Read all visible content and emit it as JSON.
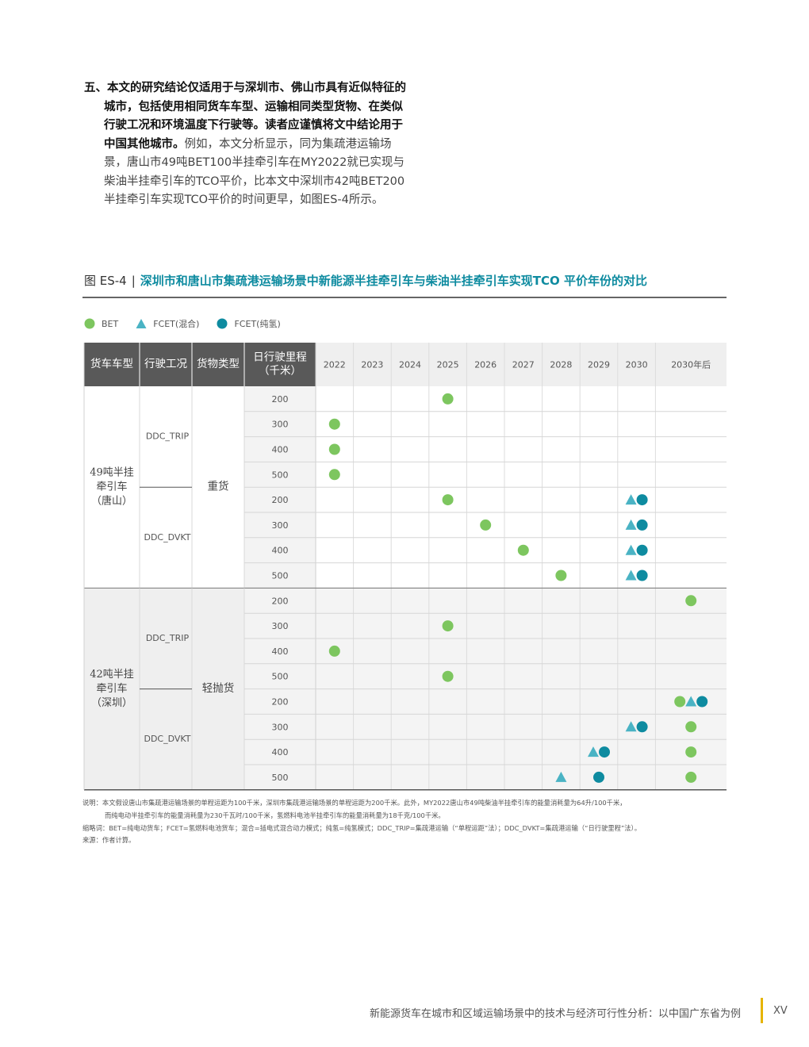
{
  "paragraph": {
    "number": "五、",
    "bold": "本文的研究结论仅适用于与深圳市、佛山市具有近似特征的城市，包括使用相同货车车型、运输相同类型货物、在类似行驶工况和环境温度下行驶等。读者应谨慎将文中结论用于中国其他城市。",
    "rest": "例如，本文分析显示，同为集疏港运输场景，唐山市49吨BET100半挂牵引车在MY2022就已实现与柴油半挂牵引车的TCO平价，比本文中深圳市42吨BET200半挂牵引车实现TCO平价的时间更早，如图ES-4所示。"
  },
  "figure": {
    "label": "图 ES-4",
    "separator": "|",
    "title": "深圳市和唐山市集疏港运输场景中新能源半挂牵引车与柴油半挂牵引车实现TCO 平价年份的对比"
  },
  "legend": [
    {
      "label": "BET",
      "shape": "circle",
      "color": "#7dc65f"
    },
    {
      "label": "FCET(混合)",
      "shape": "triangle",
      "color": "#4ab3c4"
    },
    {
      "label": "FCET(纯氢)",
      "shape": "circle",
      "color": "#0e8ba0"
    }
  ],
  "table": {
    "headers": [
      "货车车型",
      "行驶工况",
      "货物类型",
      "日行驶里程\n（千米）"
    ],
    "years": [
      "2022",
      "2023",
      "2024",
      "2025",
      "2026",
      "2027",
      "2028",
      "2029",
      "2030",
      "2030年后"
    ],
    "groups": [
      {
        "vehicle": "49吨半挂\n牵引车\n（唐山）",
        "cargo": "重货",
        "conditions": [
          "DDC_TRIP",
          "DDC_DVKT"
        ],
        "rows": [
          {
            "mileage": "200",
            "marks": [
              {
                "year": 3,
                "types": [
                  "bet"
                ]
              }
            ]
          },
          {
            "mileage": "300",
            "marks": [
              {
                "year": 0,
                "types": [
                  "bet"
                ]
              }
            ]
          },
          {
            "mileage": "400",
            "marks": [
              {
                "year": 0,
                "types": [
                  "bet"
                ]
              }
            ]
          },
          {
            "mileage": "500",
            "marks": [
              {
                "year": 0,
                "types": [
                  "bet"
                ]
              }
            ]
          },
          {
            "mileage": "200",
            "marks": [
              {
                "year": 3,
                "types": [
                  "bet"
                ]
              },
              {
                "year": 8,
                "types": [
                  "mix",
                  "h2"
                ]
              }
            ]
          },
          {
            "mileage": "300",
            "marks": [
              {
                "year": 4,
                "types": [
                  "bet"
                ]
              },
              {
                "year": 8,
                "types": [
                  "mix",
                  "h2"
                ]
              }
            ]
          },
          {
            "mileage": "400",
            "marks": [
              {
                "year": 5,
                "types": [
                  "bet"
                ]
              },
              {
                "year": 8,
                "types": [
                  "mix",
                  "h2"
                ]
              }
            ]
          },
          {
            "mileage": "500",
            "marks": [
              {
                "year": 6,
                "types": [
                  "bet"
                ]
              },
              {
                "year": 8,
                "types": [
                  "mix",
                  "h2"
                ]
              }
            ]
          }
        ]
      },
      {
        "vehicle": "42吨半挂\n牵引车\n（深圳）",
        "cargo": "轻抛货",
        "conditions": [
          "DDC_TRIP",
          "DDC_DVKT"
        ],
        "rows": [
          {
            "mileage": "200",
            "marks": [
              {
                "year": 9,
                "types": [
                  "bet"
                ]
              }
            ]
          },
          {
            "mileage": "300",
            "marks": [
              {
                "year": 3,
                "types": [
                  "bet"
                ]
              }
            ]
          },
          {
            "mileage": "400",
            "marks": [
              {
                "year": 0,
                "types": [
                  "bet"
                ]
              }
            ]
          },
          {
            "mileage": "500",
            "marks": [
              {
                "year": 3,
                "types": [
                  "bet"
                ]
              }
            ]
          },
          {
            "mileage": "200",
            "marks": [
              {
                "year": 9,
                "types": [
                  "bet",
                  "mix",
                  "h2"
                ]
              }
            ]
          },
          {
            "mileage": "300",
            "marks": [
              {
                "year": 8,
                "types": [
                  "mix",
                  "h2"
                ]
              },
              {
                "year": 9,
                "types": [
                  "bet"
                ]
              }
            ]
          },
          {
            "mileage": "400",
            "marks": [
              {
                "year": 7,
                "types": [
                  "mix",
                  "h2"
                ]
              },
              {
                "year": 9,
                "types": [
                  "bet"
                ]
              }
            ]
          },
          {
            "mileage": "500",
            "marks": [
              {
                "year": 6,
                "types": [
                  "mix"
                ]
              },
              {
                "year": 7,
                "types": [
                  "h2"
                ]
              },
              {
                "year": 9,
                "types": [
                  "bet"
                ]
              }
            ]
          }
        ]
      }
    ]
  },
  "notes": {
    "line1": "说明：本文假设唐山市集疏港运输场景的单程运距为100千米，深圳市集疏港运输场景的单程运距为200千米。此外，MY2022唐山市49吨柴油半挂牵引车的能量消耗量为64升/100千米，",
    "line2": "而纯电动半挂牵引车的能量消耗量为230千瓦时/100千米，氢燃料电池半挂牵引车的能量消耗量为18千克/100千米。",
    "line3": "缩略词：BET=纯电动货车；FCET=氢燃料电池货车；混合=插电式混合动力模式；纯氢=纯氢模式；DDC_TRIP=集疏港运输（“单程运距”法）；DDC_DVKT=集疏港运输（“日行驶里程”法）。",
    "line4": "来源：作者计算。"
  },
  "footer": {
    "text": "新能源货车在城市和区域运输场景中的技术与经济可行性分析：以中国广东省为例",
    "page": "XV"
  }
}
